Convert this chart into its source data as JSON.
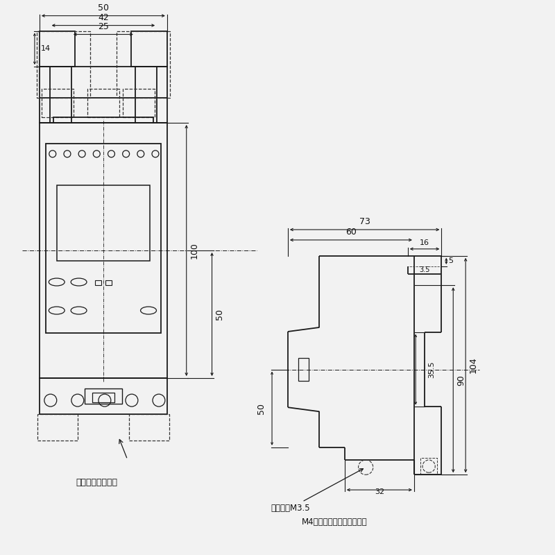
{
  "bg_color": "#f2f2f2",
  "line_color": "#1a1a1a",
  "dash_color": "#333333",
  "dim_color": "#1a1a1a",
  "text_color": "#111111",
  "figsize": [
    8.0,
    8.0
  ],
  "dpi": 100,
  "annotations": {
    "claw_label": "取付爪（付属品）",
    "terminal_label": "端子ねじM3.5",
    "m4_label": "M4ねじをご使用ください。"
  }
}
